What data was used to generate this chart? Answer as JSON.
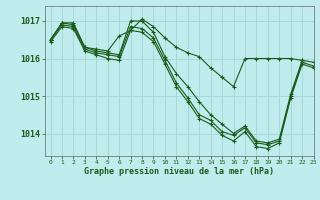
{
  "title": "Graphe pression niveau de la mer (hPa)",
  "background_color": "#c0ecee",
  "grid_color": "#a8d8da",
  "line_color": "#1a5c1a",
  "xlim": [
    -0.5,
    23
  ],
  "ylim": [
    1013.4,
    1017.4
  ],
  "yticks": [
    1014,
    1015,
    1016,
    1017
  ],
  "xticks": [
    0,
    1,
    2,
    3,
    4,
    5,
    6,
    7,
    8,
    9,
    10,
    11,
    12,
    13,
    14,
    15,
    16,
    17,
    18,
    19,
    20,
    21,
    22,
    23
  ],
  "lines": [
    {
      "x": [
        0,
        1,
        2,
        3,
        4,
        5,
        6,
        7,
        8,
        9,
        10,
        11,
        12,
        13,
        14,
        15,
        16,
        17,
        18,
        19,
        20,
        21,
        22,
        23
      ],
      "y": [
        1016.5,
        1016.95,
        1016.95,
        1016.3,
        1016.25,
        1016.2,
        1016.6,
        1016.75,
        1017.05,
        1016.85,
        1016.55,
        1016.3,
        1016.15,
        1016.05,
        1015.75,
        1015.5,
        1015.25,
        1016.0,
        1016.0,
        1016.0,
        1016.0,
        1016.0,
        1015.95,
        null
      ]
    },
    {
      "x": [
        0,
        1,
        2,
        3,
        4,
        5,
        6,
        7,
        8,
        9,
        10,
        11,
        12,
        13,
        14,
        15,
        16,
        17,
        18,
        19,
        20,
        21,
        22,
        23
      ],
      "y": [
        1016.5,
        1016.95,
        1016.9,
        1016.3,
        1016.2,
        1016.15,
        1016.1,
        1017.0,
        1017.0,
        1016.7,
        1016.05,
        1015.6,
        1015.25,
        1014.85,
        1014.5,
        1014.25,
        1014.0,
        1014.2,
        1013.8,
        1013.75,
        1013.85,
        1015.05,
        1015.95,
        1015.9
      ]
    },
    {
      "x": [
        0,
        1,
        2,
        3,
        4,
        5,
        6,
        7,
        8,
        9,
        10,
        11,
        12,
        13,
        14,
        15,
        16,
        17,
        18,
        19,
        20,
        21,
        22,
        23
      ],
      "y": [
        1016.5,
        1016.9,
        1016.85,
        1016.25,
        1016.15,
        1016.1,
        1016.05,
        1016.85,
        1016.8,
        1016.55,
        1015.95,
        1015.35,
        1014.95,
        1014.5,
        1014.35,
        1014.05,
        1013.95,
        1014.15,
        1013.75,
        1013.7,
        1013.8,
        1015.0,
        1015.9,
        1015.8
      ]
    },
    {
      "x": [
        0,
        1,
        2,
        3,
        4,
        5,
        6,
        7,
        8,
        9,
        10,
        11,
        12,
        13,
        14,
        15,
        16,
        17,
        18,
        19,
        20,
        21,
        22,
        23
      ],
      "y": [
        1016.45,
        1016.85,
        1016.8,
        1016.2,
        1016.1,
        1016.0,
        1015.95,
        1016.75,
        1016.7,
        1016.45,
        1015.85,
        1015.25,
        1014.85,
        1014.4,
        1014.25,
        1013.95,
        1013.8,
        1014.05,
        1013.65,
        1013.6,
        1013.75,
        1014.95,
        1015.85,
        1015.75
      ]
    }
  ]
}
